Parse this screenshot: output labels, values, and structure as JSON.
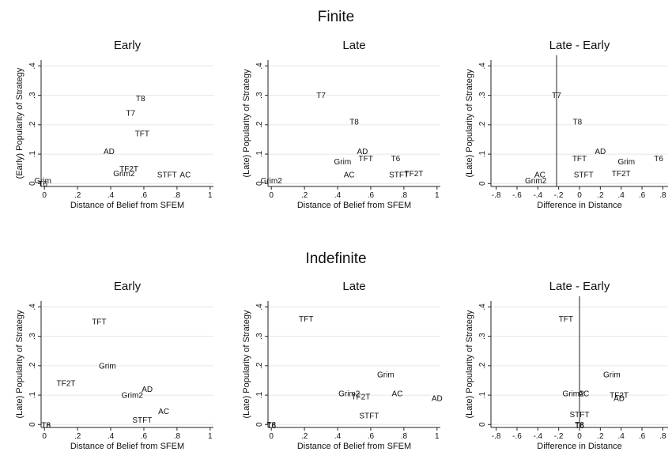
{
  "groups": [
    {
      "title": "Finite"
    },
    {
      "title": "Indefinite"
    }
  ],
  "chart_data": [
    {
      "type": "scatter",
      "title": "Early",
      "xlabel": "Distance of Belief from SFEM",
      "ylabel": "(Early) Popularity of Strategy",
      "xlim": [
        -0.02,
        1.02
      ],
      "ylim": [
        -0.01,
        0.42
      ],
      "xticks": [
        0,
        0.2,
        0.4,
        0.6,
        0.8,
        1
      ],
      "xtick_labels": [
        "0",
        ".2",
        ".4",
        ".6",
        ".8",
        "1"
      ],
      "yticks": [
        0,
        0.1,
        0.2,
        0.3,
        0.4
      ],
      "ytick_labels": [
        "0",
        ".1",
        ".2",
        ".3",
        ".4"
      ],
      "grid": true,
      "vline": null,
      "points": [
        {
          "label": "T8",
          "x": 0.58,
          "y": 0.29
        },
        {
          "label": "T7",
          "x": 0.52,
          "y": 0.24
        },
        {
          "label": "TFT",
          "x": 0.59,
          "y": 0.17
        },
        {
          "label": "AD",
          "x": 0.39,
          "y": 0.11
        },
        {
          "label": "TF2T",
          "x": 0.51,
          "y": 0.05
        },
        {
          "label": "Grim2",
          "x": 0.48,
          "y": 0.035
        },
        {
          "label": "STFT",
          "x": 0.74,
          "y": 0.03
        },
        {
          "label": "AC",
          "x": 0.85,
          "y": 0.03
        },
        {
          "label": "Grim",
          "x": -0.01,
          "y": 0.01
        },
        {
          "label": "T6",
          "x": -0.01,
          "y": 0.0
        }
      ]
    },
    {
      "type": "scatter",
      "title": "Late",
      "xlabel": "Distance of Belief from SFEM",
      "ylabel": "(Late) Popularity of Strategy",
      "xlim": [
        -0.02,
        1.02
      ],
      "ylim": [
        -0.01,
        0.42
      ],
      "xticks": [
        0,
        0.2,
        0.4,
        0.6,
        0.8,
        1
      ],
      "xtick_labels": [
        "0",
        ".2",
        ".4",
        ".6",
        ".8",
        "1"
      ],
      "yticks": [
        0,
        0.1,
        0.2,
        0.3,
        0.4
      ],
      "ytick_labels": [
        "0",
        ".1",
        ".2",
        ".3",
        ".4"
      ],
      "grid": true,
      "vline": null,
      "points": [
        {
          "label": "T7",
          "x": 0.3,
          "y": 0.3
        },
        {
          "label": "T8",
          "x": 0.5,
          "y": 0.21
        },
        {
          "label": "AD",
          "x": 0.55,
          "y": 0.11
        },
        {
          "label": "TFT",
          "x": 0.57,
          "y": 0.085
        },
        {
          "label": "Grim",
          "x": 0.43,
          "y": 0.075
        },
        {
          "label": "T6",
          "x": 0.75,
          "y": 0.085
        },
        {
          "label": "AC",
          "x": 0.47,
          "y": 0.03
        },
        {
          "label": "STFT",
          "x": 0.77,
          "y": 0.03
        },
        {
          "label": "TF2T",
          "x": 0.86,
          "y": 0.035
        },
        {
          "label": "Grim2",
          "x": 0.0,
          "y": 0.01
        }
      ]
    },
    {
      "type": "scatter",
      "title": "Late - Early",
      "xlabel": "Difference in Distance",
      "ylabel": "(Late) Popularity of Strategy",
      "xlim": [
        -0.85,
        0.85
      ],
      "ylim": [
        -0.01,
        0.42
      ],
      "xticks": [
        -0.8,
        -0.6,
        -0.4,
        -0.2,
        0,
        0.2,
        0.4,
        0.6,
        0.8
      ],
      "xtick_labels": [
        "-.8",
        "-.6",
        "-.4",
        "-.2",
        "0",
        ".2",
        ".4",
        ".6",
        ".8"
      ],
      "yticks": [
        0,
        0.1,
        0.2,
        0.3,
        0.4
      ],
      "ytick_labels": [
        "0",
        ".1",
        ".2",
        ".3",
        ".4"
      ],
      "grid": true,
      "vline": -0.22,
      "points": [
        {
          "label": "T7",
          "x": -0.22,
          "y": 0.3
        },
        {
          "label": "T8",
          "x": -0.02,
          "y": 0.21
        },
        {
          "label": "AD",
          "x": 0.2,
          "y": 0.11
        },
        {
          "label": "TFT",
          "x": 0.0,
          "y": 0.085
        },
        {
          "label": "Grim",
          "x": 0.45,
          "y": 0.075
        },
        {
          "label": "T6",
          "x": 0.76,
          "y": 0.085
        },
        {
          "label": "STFT",
          "x": 0.04,
          "y": 0.03
        },
        {
          "label": "TF2T",
          "x": 0.4,
          "y": 0.035
        },
        {
          "label": "AC",
          "x": -0.38,
          "y": 0.03
        },
        {
          "label": "Grim2",
          "x": -0.42,
          "y": 0.01
        }
      ]
    },
    {
      "type": "scatter",
      "title": "Early",
      "xlabel": "Distance of Belief from SFEM",
      "ylabel": "(Late) Popularity of Strategy",
      "xlim": [
        -0.02,
        1.02
      ],
      "ylim": [
        -0.01,
        0.42
      ],
      "xticks": [
        0,
        0.2,
        0.4,
        0.6,
        0.8,
        1
      ],
      "xtick_labels": [
        "0",
        ".2",
        ".4",
        ".6",
        ".8",
        "1"
      ],
      "yticks": [
        0,
        0.1,
        0.2,
        0.3,
        0.4
      ],
      "ytick_labels": [
        "0",
        ".1",
        ".2",
        ".3",
        ".4"
      ],
      "grid": true,
      "vline": null,
      "points": [
        {
          "label": "TFT",
          "x": 0.33,
          "y": 0.35
        },
        {
          "label": "Grim",
          "x": 0.38,
          "y": 0.2
        },
        {
          "label": "TF2T",
          "x": 0.13,
          "y": 0.14
        },
        {
          "label": "AD",
          "x": 0.62,
          "y": 0.12
        },
        {
          "label": "Grim2",
          "x": 0.53,
          "y": 0.1
        },
        {
          "label": "AC",
          "x": 0.72,
          "y": 0.045
        },
        {
          "label": "STFT",
          "x": 0.59,
          "y": 0.015
        },
        {
          "label": "T8",
          "x": 0.01,
          "y": -0.002
        },
        {
          "label": "T6",
          "x": 0.01,
          "y": -0.002
        }
      ]
    },
    {
      "type": "scatter",
      "title": "Late",
      "xlabel": "Distance of Belief from SFEM",
      "ylabel": "(Late) Popularity of Strategy",
      "xlim": [
        -0.02,
        1.02
      ],
      "ylim": [
        -0.01,
        0.42
      ],
      "xticks": [
        0,
        0.2,
        0.4,
        0.6,
        0.8,
        1
      ],
      "xtick_labels": [
        "0",
        ".2",
        ".4",
        ".6",
        ".8",
        "1"
      ],
      "yticks": [
        0,
        0.1,
        0.2,
        0.3,
        0.4
      ],
      "ytick_labels": [
        "0",
        ".1",
        ".2",
        ".3",
        ".4"
      ],
      "grid": true,
      "vline": null,
      "points": [
        {
          "label": "TFT",
          "x": 0.21,
          "y": 0.36
        },
        {
          "label": "Grim",
          "x": 0.69,
          "y": 0.17
        },
        {
          "label": "Grim2",
          "x": 0.47,
          "y": 0.105
        },
        {
          "label": "TF2T",
          "x": 0.54,
          "y": 0.095
        },
        {
          "label": "AC",
          "x": 0.76,
          "y": 0.105
        },
        {
          "label": "AD",
          "x": 1.0,
          "y": 0.09
        },
        {
          "label": "STFT",
          "x": 0.59,
          "y": 0.03
        },
        {
          "label": "T8",
          "x": 0.0,
          "y": 0.0
        },
        {
          "label": "T6",
          "x": 0.0,
          "y": -0.003
        }
      ]
    },
    {
      "type": "scatter",
      "title": "Late - Early",
      "xlabel": "Difference in Distance",
      "ylabel": "(Late) Popularity of Strategy",
      "xlim": [
        -0.85,
        0.85
      ],
      "ylim": [
        -0.01,
        0.42
      ],
      "xticks": [
        -0.8,
        -0.6,
        -0.4,
        -0.2,
        0,
        0.2,
        0.4,
        0.6,
        0.8
      ],
      "xtick_labels": [
        "-.8",
        "-.6",
        "-.4",
        "-.2",
        "0",
        ".2",
        ".4",
        ".6",
        ".8"
      ],
      "yticks": [
        0,
        0.1,
        0.2,
        0.3,
        0.4
      ],
      "ytick_labels": [
        "0",
        ".1",
        ".2",
        ".3",
        ".4"
      ],
      "grid": true,
      "vline": 0.0,
      "points": [
        {
          "label": "TFT",
          "x": -0.13,
          "y": 0.36
        },
        {
          "label": "Grim",
          "x": 0.31,
          "y": 0.17
        },
        {
          "label": "Grim2",
          "x": -0.06,
          "y": 0.105
        },
        {
          "label": "AC",
          "x": 0.04,
          "y": 0.105
        },
        {
          "label": "TF2T",
          "x": 0.38,
          "y": 0.1
        },
        {
          "label": "AD",
          "x": 0.38,
          "y": 0.09
        },
        {
          "label": "STFT",
          "x": 0.0,
          "y": 0.035
        },
        {
          "label": "T8",
          "x": 0.0,
          "y": 0.0
        },
        {
          "label": "T6",
          "x": 0.0,
          "y": -0.003
        }
      ]
    }
  ]
}
